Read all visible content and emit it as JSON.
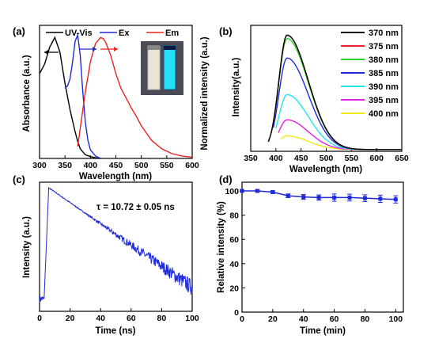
{
  "chart_data": [
    {
      "panel": "(a)",
      "type": "line",
      "xlabel": "Wavelength (nm)",
      "ylabel": "Absorbance (a.u.)",
      "ylabel_right": "Normalized intensity (a.u.)",
      "xlim": [
        300,
        600
      ],
      "ylim": [
        0,
        1.1
      ],
      "xticks": [
        300,
        350,
        400,
        450,
        500,
        550,
        600
      ],
      "legend_position": "top",
      "series": [
        {
          "name": "UV-Vis",
          "color": "#000000",
          "x": [
            300,
            310,
            320,
            330,
            340,
            350,
            360,
            370,
            375,
            380,
            390,
            400,
            410,
            420
          ],
          "y": [
            0.7,
            0.78,
            0.92,
            1.0,
            0.88,
            0.62,
            0.4,
            0.22,
            0.14,
            0.08,
            0.03,
            0.015,
            0.005,
            0.0
          ]
        },
        {
          "name": "Ex",
          "color": "#1f2ad9",
          "x": [
            350,
            355,
            360,
            365,
            370,
            375,
            380,
            385,
            390,
            395,
            400,
            410,
            420
          ],
          "y": [
            0.58,
            0.6,
            0.66,
            0.8,
            0.97,
            1.02,
            0.85,
            0.55,
            0.3,
            0.15,
            0.07,
            0.02,
            0.0
          ]
        },
        {
          "name": "Em",
          "color": "#e8231f",
          "x": [
            375,
            380,
            390,
            400,
            410,
            420,
            425,
            430,
            440,
            450,
            460,
            470,
            480,
            490,
            500,
            520,
            540,
            560,
            580,
            600
          ],
          "y": [
            0.1,
            0.25,
            0.55,
            0.8,
            0.95,
            1.0,
            0.99,
            0.96,
            0.85,
            0.7,
            0.58,
            0.5,
            0.42,
            0.35,
            0.27,
            0.15,
            0.08,
            0.04,
            0.02,
            0.01
          ]
        }
      ]
    },
    {
      "panel": "(b)",
      "type": "line",
      "xlabel": "Wavelength (nm)",
      "ylabel": "Intensity(a.u.)",
      "xlim": [
        350,
        650
      ],
      "ylim": [
        0,
        1.1
      ],
      "xticks": [
        350,
        400,
        450,
        500,
        550,
        600,
        650
      ],
      "legend_position": "top-right",
      "series": [
        {
          "name": "370 nm",
          "color": "#000000",
          "excitation": 370,
          "peak": 1.0,
          "start": 385
        },
        {
          "name": "375 nm",
          "color": "#e8231f",
          "excitation": 375,
          "peak": 1.0,
          "start": 385
        },
        {
          "name": "380 nm",
          "color": "#2bd42b",
          "excitation": 380,
          "peak": 0.97,
          "start": 390
        },
        {
          "name": "385 nm",
          "color": "#1f2ad9",
          "excitation": 385,
          "peak": 0.8,
          "start": 395
        },
        {
          "name": "390 nm",
          "color": "#22e6ea",
          "excitation": 390,
          "peak": 0.48,
          "start": 400
        },
        {
          "name": "395 nm",
          "color": "#e51fe5",
          "excitation": 395,
          "peak": 0.26,
          "start": 405
        },
        {
          "name": "400 nm",
          "color": "#f2e81a",
          "excitation": 400,
          "peak": 0.12,
          "start": 410
        }
      ]
    },
    {
      "panel": "(c)",
      "type": "line",
      "xlabel": "Time (ns)",
      "ylabel": "Intensity (a.u.)",
      "xlim": [
        0,
        100
      ],
      "xticks": [
        0,
        20,
        40,
        60,
        80,
        100
      ],
      "annotation": "τ = 10.72 ± 0.05 ns",
      "series": [
        {
          "name": "",
          "color": "#1f2ad9",
          "rise_start": 3,
          "peak_time": 6,
          "lifetime": 10.72
        }
      ]
    },
    {
      "panel": "(d)",
      "type": "line",
      "xlabel": "Time (min)",
      "ylabel": "Relative intensity (%)",
      "xlim": [
        0,
        105
      ],
      "ylim": [
        0,
        100
      ],
      "xticks": [
        0,
        20,
        40,
        60,
        80,
        100
      ],
      "yticks": [
        0,
        20,
        40,
        60,
        80,
        100
      ],
      "series": [
        {
          "name": "",
          "color": "#1f2ad9",
          "x": [
            0,
            10,
            20,
            30,
            40,
            50,
            60,
            70,
            80,
            90,
            100
          ],
          "y": [
            100,
            100,
            99,
            96,
            95,
            94.5,
            94.5,
            94.5,
            94,
            93.5,
            93
          ],
          "err": [
            0.5,
            0.8,
            1.2,
            1.5,
            2.0,
            2.2,
            3.0,
            2.8,
            2.8,
            3.0,
            3.0
          ]
        }
      ]
    }
  ],
  "vials": {
    "left_color": "#e9e4d8",
    "right_color": "#24dff5"
  }
}
